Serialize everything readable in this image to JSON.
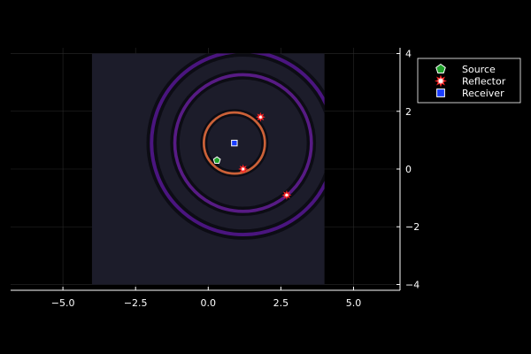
{
  "chart_data": {
    "type": "scatter",
    "title": "",
    "xlabel": "",
    "ylabel": "",
    "xlim": [
      -6.8,
      6.6
    ],
    "ylim": [
      -4.2,
      4.2
    ],
    "xticks": [
      -5.0,
      -2.5,
      0.0,
      2.5,
      5.0
    ],
    "xtick_labels": [
      "−5.0",
      "−2.5",
      "0.0",
      "2.5",
      "5.0"
    ],
    "yticks": [
      -4,
      -2,
      0,
      2,
      4
    ],
    "ytick_labels": [
      "−4",
      "−2",
      "0",
      "2",
      "4"
    ],
    "y_axis_side": "right",
    "grid": true,
    "background": {
      "type": "heatmap",
      "x_extent": [
        -4,
        4
      ],
      "y_extent": [
        -4,
        4
      ],
      "color": "#1c1c2a",
      "rings": [
        {
          "center": [
            0.9,
            0.9
          ],
          "radius": 1.05,
          "width": 0.15,
          "color": "#e06a3c",
          "opacity": 0.9
        },
        {
          "center": [
            1.2,
            0.9
          ],
          "radius": 2.35,
          "width": 0.2,
          "color": "#6a1fa0",
          "opacity": 0.8
        },
        {
          "center": [
            1.2,
            0.9
          ],
          "radius": 3.15,
          "width": 0.22,
          "color": "#5a189a",
          "opacity": 0.8
        }
      ]
    },
    "series": [
      {
        "name": "Source",
        "marker": "pentagon",
        "color": "#1fa22b",
        "points": [
          [
            0.3,
            0.3
          ]
        ]
      },
      {
        "name": "Reflector",
        "marker": "star",
        "color": "#ffffff",
        "points": [
          [
            1.8,
            1.8
          ],
          [
            1.2,
            0.0
          ],
          [
            2.7,
            -0.9
          ]
        ]
      },
      {
        "name": "Receiver",
        "marker": "square",
        "color": "#1a3dff",
        "points": [
          [
            0.9,
            0.9
          ]
        ]
      }
    ],
    "legend": {
      "position": "top-right"
    }
  }
}
